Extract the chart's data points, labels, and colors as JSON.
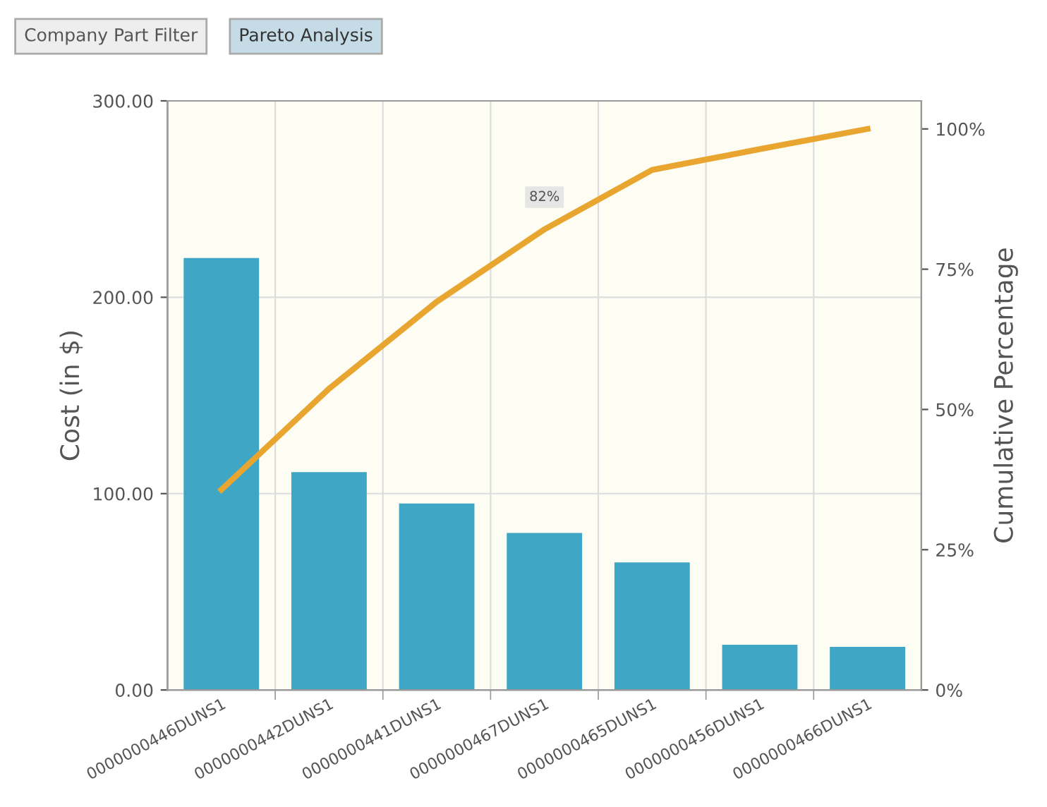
{
  "chart_data": {
    "type": "bar",
    "xlabel": null,
    "ylabel": "Cost (in $)",
    "y2label": "Cumulative Percentage",
    "categories": [
      "0000000446DUNS1",
      "0000000442DUNS1",
      "0000000441DUNS1",
      "0000000467DUNS1",
      "0000000465DUNS1",
      "0000000456DUNS1",
      "0000000466DUNS1"
    ],
    "series": [
      {
        "color": "#3fa7c5",
        "values": [
          220,
          111,
          95,
          80,
          65,
          23,
          22
        ]
      },
      {
        "type": "line",
        "axis": "y2",
        "color": "#e8a530",
        "values": [
          35.7,
          53.7,
          69.2,
          82.1,
          92.7,
          96.4,
          100
        ]
      }
    ],
    "ylim": [
      0,
      300
    ],
    "yticks": [
      {
        "value": 0,
        "label": "0.00"
      },
      {
        "value": 100,
        "label": "100.00"
      },
      {
        "value": 200,
        "label": "200.00"
      },
      {
        "value": 300,
        "label": "300.00"
      }
    ],
    "y2lim": [
      0,
      105
    ],
    "y2ticks": [
      {
        "value": 0,
        "label": "0%"
      },
      {
        "value": 25,
        "label": "25%"
      },
      {
        "value": 50,
        "label": "50%"
      },
      {
        "value": 75,
        "label": "75%"
      },
      {
        "value": 100,
        "label": "100%"
      }
    ],
    "grid": true,
    "legend": false,
    "marker": "none",
    "line_style": "solid",
    "annotations": [
      "Company Part Filter",
      "Pareto Analysis",
      "82%"
    ]
  }
}
